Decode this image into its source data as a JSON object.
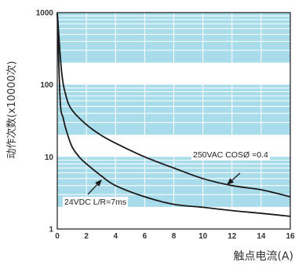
{
  "chart_data": {
    "type": "line",
    "xlabel": "触点电流(A)",
    "ylabel": "动作次数(x10000次)",
    "x_ticks": [
      "0",
      "2",
      "4",
      "6",
      "8",
      "10",
      "12",
      "14",
      "16"
    ],
    "y_ticks": [
      "1",
      "10",
      "100",
      "1000"
    ],
    "xlim": [
      0,
      16
    ],
    "ylim": [
      1,
      1000
    ],
    "y_scale": "log",
    "grid": true,
    "colors": {
      "band_fill": "#a9dcea",
      "band_line": "#ffffff",
      "frame": "#1a1a1a",
      "curve": "#1a1a1a"
    },
    "series": [
      {
        "annotation": "250VAC COSØ =0.4",
        "x": [
          0,
          0.3,
          0.6,
          1,
          2,
          3,
          4,
          6,
          8,
          10,
          12,
          14,
          16
        ],
        "y": [
          1000,
          150,
          70,
          45,
          28,
          20,
          15.5,
          10,
          7,
          5,
          4,
          3.5,
          2.8
        ]
      },
      {
        "annotation": "24VDC L/R=7ms",
        "x": [
          0,
          0.2,
          0.4,
          0.6,
          1,
          1.5,
          2,
          3,
          4,
          6,
          8,
          10,
          12,
          14,
          16
        ],
        "y": [
          1000,
          60,
          35,
          24,
          14,
          10,
          8,
          5.5,
          4,
          2.8,
          2.2,
          2,
          1.8,
          1.65,
          1.5
        ]
      }
    ]
  }
}
